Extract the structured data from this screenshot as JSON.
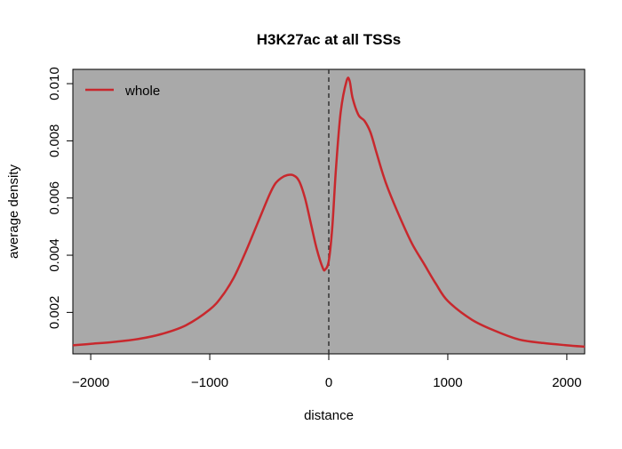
{
  "chart_data": {
    "type": "line",
    "title": "H3K27ac at all TSSs",
    "xlabel": "distance",
    "ylabel": "average density",
    "xlim": [
      -2150,
      2150
    ],
    "ylim": [
      0.00055,
      0.0105
    ],
    "x_ticks": [
      -2000,
      -1000,
      0,
      1000,
      2000
    ],
    "x_tick_labels": [
      "−2000",
      "−1000",
      "0",
      "1000",
      "2000"
    ],
    "y_ticks": [
      0.002,
      0.004,
      0.006,
      0.008,
      0.01
    ],
    "y_tick_labels": [
      "0.002",
      "0.004",
      "0.006",
      "0.008",
      "0.010"
    ],
    "plot_background": "#a9a9a9",
    "vertical_reference_line": {
      "x": 0,
      "style": "dashed",
      "color": "#333333"
    },
    "legend": {
      "position": "top-left",
      "entries": [
        "whole"
      ]
    },
    "series": [
      {
        "name": "whole",
        "color": "#c8282d",
        "x": [
          -2150,
          -2000,
          -1800,
          -1600,
          -1400,
          -1200,
          -1000,
          -900,
          -800,
          -700,
          -600,
          -500,
          -450,
          -400,
          -350,
          -300,
          -250,
          -200,
          -150,
          -100,
          -50,
          -30,
          0,
          30,
          60,
          100,
          150,
          175,
          200,
          250,
          300,
          350,
          400,
          450,
          500,
          600,
          700,
          800,
          900,
          1000,
          1200,
          1400,
          1600,
          1800,
          2000,
          2150
        ],
        "y": [
          0.00085,
          0.0009,
          0.00097,
          0.00107,
          0.00125,
          0.00155,
          0.0021,
          0.00255,
          0.0032,
          0.0041,
          0.0051,
          0.0061,
          0.0065,
          0.0067,
          0.0068,
          0.0068,
          0.0066,
          0.006,
          0.0051,
          0.0042,
          0.00355,
          0.0035,
          0.0038,
          0.005,
          0.007,
          0.009,
          0.0101,
          0.0101,
          0.0095,
          0.0089,
          0.0087,
          0.0083,
          0.0076,
          0.0069,
          0.0063,
          0.0053,
          0.0044,
          0.0037,
          0.003,
          0.0024,
          0.00175,
          0.00135,
          0.00105,
          0.00093,
          0.00085,
          0.0008
        ]
      }
    ]
  }
}
